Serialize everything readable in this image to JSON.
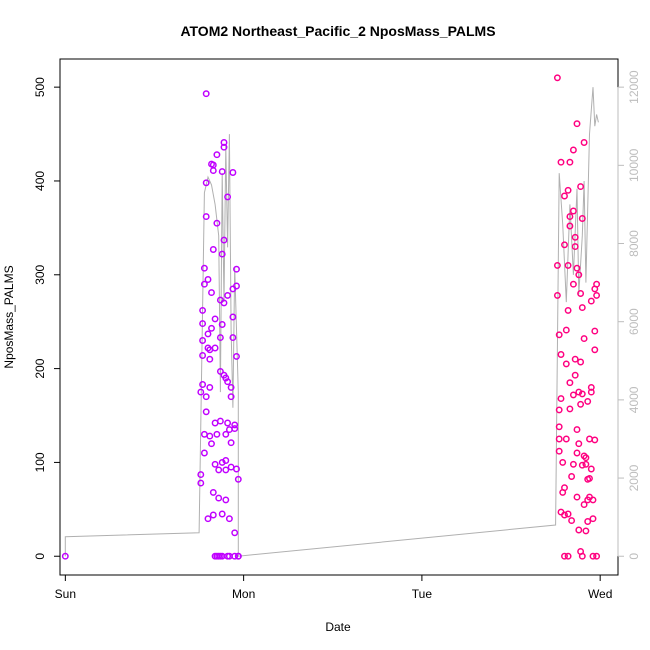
{
  "chart_data": {
    "type": "scatter",
    "title": "ATOM2 Northeast_Pacific_2 NposMass_PALMS",
    "xlabel": "Date",
    "ylabel": "NposMass_PALMS",
    "x_ticks": [
      "Sun",
      "Mon",
      "Tue",
      "Wed"
    ],
    "y_ticks": [
      "0",
      "100",
      "200",
      "300",
      "400",
      "500"
    ],
    "y2_ticks": [
      "0",
      "2000",
      "4000",
      "6000",
      "8000",
      "10000",
      "12000"
    ],
    "xlim": [
      -0.03,
      3.1
    ],
    "ylim": [
      -20,
      530
    ],
    "y2lim": [
      -480,
      12720
    ],
    "colors": {
      "point_early": "#c000ff",
      "point_late": "#ff0080",
      "line": "#b0b0b0"
    },
    "series": [
      {
        "values": [
          [
            0.0,
            0
          ],
          [
            0.76,
            78
          ],
          [
            0.76,
            87
          ],
          [
            0.76,
            175
          ],
          [
            0.77,
            183
          ],
          [
            0.77,
            214
          ],
          [
            0.77,
            230
          ],
          [
            0.77,
            248
          ],
          [
            0.77,
            262
          ],
          [
            0.78,
            110
          ],
          [
            0.78,
            130
          ],
          [
            0.78,
            290
          ],
          [
            0.78,
            307
          ],
          [
            0.79,
            362
          ],
          [
            0.79,
            398
          ],
          [
            0.79,
            493
          ],
          [
            0.79,
            154
          ],
          [
            0.79,
            170
          ],
          [
            0.8,
            222
          ],
          [
            0.8,
            237
          ],
          [
            0.8,
            295
          ],
          [
            0.8,
            40
          ],
          [
            0.81,
            128
          ],
          [
            0.81,
            180
          ],
          [
            0.81,
            210
          ],
          [
            0.81,
            220
          ],
          [
            0.82,
            243
          ],
          [
            0.82,
            418
          ],
          [
            0.82,
            281
          ],
          [
            0.82,
            120
          ],
          [
            0.83,
            417
          ],
          [
            0.83,
            411
          ],
          [
            0.83,
            327
          ],
          [
            0.83,
            68
          ],
          [
            0.83,
            44
          ],
          [
            0.84,
            142
          ],
          [
            0.84,
            222
          ],
          [
            0.84,
            253
          ],
          [
            0.84,
            98
          ],
          [
            0.84,
            0
          ],
          [
            0.85,
            0
          ],
          [
            0.85,
            355
          ],
          [
            0.85,
            428
          ],
          [
            0.85,
            130
          ],
          [
            0.86,
            92
          ],
          [
            0.86,
            0
          ],
          [
            0.86,
            62
          ],
          [
            0.87,
            0
          ],
          [
            0.87,
            197
          ],
          [
            0.87,
            233
          ],
          [
            0.87,
            273
          ],
          [
            0.87,
            144
          ],
          [
            0.88,
            0
          ],
          [
            0.88,
            322
          ],
          [
            0.88,
            410
          ],
          [
            0.88,
            247
          ],
          [
            0.88,
            100
          ],
          [
            0.88,
            45
          ],
          [
            0.89,
            436
          ],
          [
            0.89,
            441
          ],
          [
            0.89,
            337
          ],
          [
            0.89,
            270
          ],
          [
            0.89,
            193
          ],
          [
            0.9,
            190
          ],
          [
            0.9,
            130
          ],
          [
            0.9,
            102
          ],
          [
            0.9,
            92
          ],
          [
            0.9,
            60
          ],
          [
            0.91,
            0
          ],
          [
            0.91,
            383
          ],
          [
            0.91,
            278
          ],
          [
            0.91,
            142
          ],
          [
            0.91,
            186
          ],
          [
            0.92,
            135
          ],
          [
            0.92,
            40
          ],
          [
            0.92,
            0
          ],
          [
            0.93,
            170
          ],
          [
            0.93,
            180
          ],
          [
            0.93,
            121
          ],
          [
            0.93,
            95
          ],
          [
            0.94,
            285
          ],
          [
            0.94,
            409
          ],
          [
            0.94,
            255
          ],
          [
            0.94,
            233
          ],
          [
            0.95,
            25
          ],
          [
            0.95,
            0
          ],
          [
            0.95,
            140
          ],
          [
            0.95,
            136
          ],
          [
            0.96,
            306
          ],
          [
            0.96,
            288
          ],
          [
            0.96,
            213
          ],
          [
            0.96,
            93
          ],
          [
            0.97,
            82
          ],
          [
            0.97,
            0
          ],
          [
            0.97,
            0
          ]
        ]
      },
      {
        "values": [
          [
            2.76,
            510
          ],
          [
            2.76,
            310
          ],
          [
            2.76,
            278
          ],
          [
            2.77,
            236
          ],
          [
            2.77,
            156
          ],
          [
            2.77,
            138
          ],
          [
            2.77,
            125
          ],
          [
            2.77,
            112
          ],
          [
            2.78,
            47
          ],
          [
            2.78,
            420
          ],
          [
            2.78,
            215
          ],
          [
            2.78,
            168
          ],
          [
            2.79,
            100
          ],
          [
            2.79,
            68
          ],
          [
            2.8,
            0
          ],
          [
            2.8,
            384
          ],
          [
            2.8,
            332
          ],
          [
            2.8,
            73
          ],
          [
            2.8,
            44
          ],
          [
            2.81,
            241
          ],
          [
            2.81,
            205
          ],
          [
            2.81,
            125
          ],
          [
            2.82,
            0
          ],
          [
            2.82,
            390
          ],
          [
            2.82,
            310
          ],
          [
            2.82,
            262
          ],
          [
            2.82,
            45
          ],
          [
            2.83,
            420
          ],
          [
            2.83,
            362
          ],
          [
            2.83,
            352
          ],
          [
            2.83,
            185
          ],
          [
            2.83,
            157
          ],
          [
            2.84,
            85
          ],
          [
            2.84,
            38
          ],
          [
            2.85,
            433
          ],
          [
            2.85,
            368
          ],
          [
            2.85,
            290
          ],
          [
            2.85,
            172
          ],
          [
            2.85,
            98
          ],
          [
            2.86,
            340
          ],
          [
            2.86,
            330
          ],
          [
            2.86,
            210
          ],
          [
            2.86,
            193
          ],
          [
            2.87,
            461
          ],
          [
            2.87,
            307
          ],
          [
            2.87,
            135
          ],
          [
            2.87,
            110
          ],
          [
            2.87,
            63
          ],
          [
            2.88,
            300
          ],
          [
            2.88,
            175
          ],
          [
            2.88,
            120
          ],
          [
            2.88,
            28
          ],
          [
            2.89,
            394
          ],
          [
            2.89,
            280
          ],
          [
            2.89,
            207
          ],
          [
            2.89,
            162
          ],
          [
            2.89,
            5
          ],
          [
            2.9,
            360
          ],
          [
            2.9,
            265
          ],
          [
            2.9,
            173
          ],
          [
            2.9,
            97
          ],
          [
            2.9,
            0
          ],
          [
            2.91,
            441
          ],
          [
            2.91,
            232
          ],
          [
            2.91,
            107
          ],
          [
            2.91,
            55
          ],
          [
            2.92,
            27
          ],
          [
            2.92,
            105
          ],
          [
            2.92,
            98
          ],
          [
            2.93,
            165
          ],
          [
            2.93,
            82
          ],
          [
            2.93,
            60
          ],
          [
            2.93,
            37
          ],
          [
            2.94,
            125
          ],
          [
            2.94,
            83
          ],
          [
            2.94,
            63
          ],
          [
            2.95,
            272
          ],
          [
            2.95,
            180
          ],
          [
            2.95,
            175
          ],
          [
            2.95,
            93
          ],
          [
            2.96,
            60
          ],
          [
            2.96,
            40
          ],
          [
            2.96,
            0
          ],
          [
            2.97,
            285
          ],
          [
            2.97,
            240
          ],
          [
            2.97,
            220
          ],
          [
            2.97,
            124
          ],
          [
            2.98,
            290
          ],
          [
            2.98,
            278
          ],
          [
            2.98,
            0
          ]
        ]
      }
    ],
    "right_axis_line": {
      "x": [
        0.0,
        0.0,
        0.75,
        0.78,
        0.8,
        0.82,
        0.84,
        0.86,
        0.87,
        0.88,
        0.89,
        0.9,
        0.91,
        0.92,
        0.93,
        0.94,
        0.95,
        0.97,
        0.97,
        2.75,
        2.77,
        2.79,
        2.81,
        2.83,
        2.85,
        2.87,
        2.88,
        2.9,
        2.91,
        2.92,
        2.94,
        2.96,
        2.97,
        2.98,
        2.99
      ],
      "y": [
        0,
        500,
        600,
        9300,
        9700,
        9500,
        9000,
        8200,
        4200,
        9800,
        6500,
        10500,
        7900,
        10800,
        5800,
        3800,
        7400,
        4200,
        0,
        800,
        9800,
        8500,
        6500,
        9000,
        7200,
        9400,
        6700,
        8200,
        9600,
        7000,
        10800,
        12000,
        11000,
        11300,
        11100
      ]
    }
  }
}
